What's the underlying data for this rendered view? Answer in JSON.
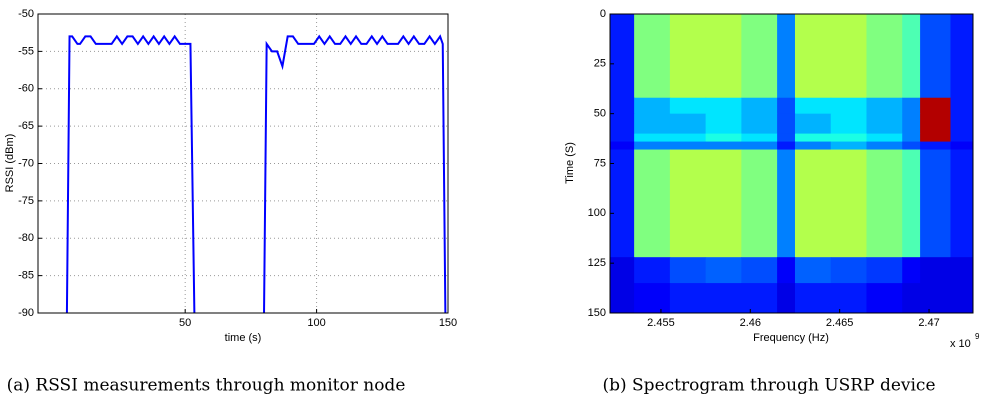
{
  "chart_data": [
    {
      "type": "line",
      "xlabel": "time (s)",
      "ylabel": "RSSI (dBm)",
      "caption": "(a) RSSI measurements through monitor node",
      "color": "#0000ff",
      "grid": true,
      "xlim": [
        -6,
        150
      ],
      "xticks": [
        50,
        100,
        150
      ],
      "ylim": [
        -90,
        -50
      ],
      "yticks": [
        -90,
        -85,
        -80,
        -75,
        -70,
        -65,
        -60,
        -55,
        -50
      ],
      "x": [
        5,
        6,
        7,
        9,
        10,
        12,
        14,
        16,
        18,
        20,
        22,
        24,
        26,
        28,
        30,
        32,
        34,
        36,
        38,
        40,
        42,
        44,
        46,
        48,
        50,
        52,
        53.5,
        67,
        80,
        81,
        83,
        85,
        87,
        89,
        91,
        93,
        95,
        97,
        99,
        101,
        103,
        105,
        107,
        109,
        111,
        113,
        115,
        117,
        119,
        121,
        123,
        125,
        127,
        129,
        131,
        133,
        135,
        137,
        139,
        141,
        143,
        145,
        147,
        148,
        149
      ],
      "values": [
        -90,
        -53,
        -53,
        -54,
        -54,
        -53,
        -53,
        -54,
        -54,
        -54,
        -54,
        -53,
        -54,
        -53,
        -53,
        -54,
        -53,
        -54,
        -53,
        -54,
        -53,
        -54,
        -53,
        -54,
        -54,
        -54,
        -90,
        null,
        -90,
        -54,
        -55,
        -55,
        -57,
        -53,
        -53,
        -54,
        -54,
        -54,
        -54,
        -53,
        -54,
        -53,
        -54,
        -54,
        -53,
        -54,
        -53,
        -54,
        -54,
        -53,
        -54,
        -53,
        -54,
        -54,
        -54,
        -53,
        -54,
        -53,
        -54,
        -54,
        -53,
        -54,
        -53,
        -54,
        -90
      ]
    },
    {
      "type": "heatmap",
      "xlabel": "Frequency (Hz)",
      "ylabel": "Time (S)",
      "caption": "(b) Spectrogram through USRP device",
      "x_multiplier": {
        "base": "x 10",
        "exponent": "9"
      },
      "colormap": "jet",
      "xlim": [
        2452150000,
        2472460000
      ],
      "xticks": [
        {
          "value": 2455000000,
          "label": "2.455"
        },
        {
          "value": 2460000000,
          "label": "2.46"
        },
        {
          "value": 2465000000,
          "label": "2.465"
        },
        {
          "value": 2470000000,
          "label": "2.47"
        }
      ],
      "ylim": [
        150,
        0
      ],
      "yticks": [
        0,
        25,
        50,
        75,
        100,
        125,
        150
      ],
      "x_edges": [
        2452150000,
        2453500000,
        2455500000,
        2457500000,
        2459500000,
        2461500000,
        2462500000,
        2464500000,
        2466500000,
        2468500000,
        2469500000,
        2471200000,
        2472460000
      ],
      "y_edges": [
        0,
        42,
        50,
        60,
        64,
        68,
        122,
        135,
        150
      ],
      "values": [
        [
          0.15,
          0.5,
          0.55,
          0.55,
          0.5,
          0.25,
          0.55,
          0.55,
          0.5,
          0.45,
          0.2,
          0.15
        ],
        [
          0.15,
          0.3,
          0.35,
          0.35,
          0.3,
          0.2,
          0.35,
          0.35,
          0.3,
          0.25,
          0.95,
          0.15
        ],
        [
          0.15,
          0.3,
          0.3,
          0.35,
          0.3,
          0.2,
          0.3,
          0.35,
          0.3,
          0.25,
          0.95,
          0.15
        ],
        [
          0.15,
          0.35,
          0.35,
          0.4,
          0.35,
          0.2,
          0.4,
          0.4,
          0.35,
          0.25,
          0.95,
          0.15
        ],
        [
          0.12,
          0.25,
          0.25,
          0.25,
          0.25,
          0.15,
          0.25,
          0.3,
          0.25,
          0.2,
          0.15,
          0.12
        ],
        [
          0.15,
          0.5,
          0.55,
          0.55,
          0.5,
          0.25,
          0.55,
          0.55,
          0.5,
          0.45,
          0.2,
          0.15
        ],
        [
          0.1,
          0.15,
          0.2,
          0.22,
          0.2,
          0.12,
          0.22,
          0.2,
          0.18,
          0.12,
          0.1,
          0.1
        ],
        [
          0.1,
          0.12,
          0.15,
          0.15,
          0.15,
          0.1,
          0.15,
          0.15,
          0.12,
          0.1,
          0.1,
          0.1
        ]
      ]
    }
  ]
}
